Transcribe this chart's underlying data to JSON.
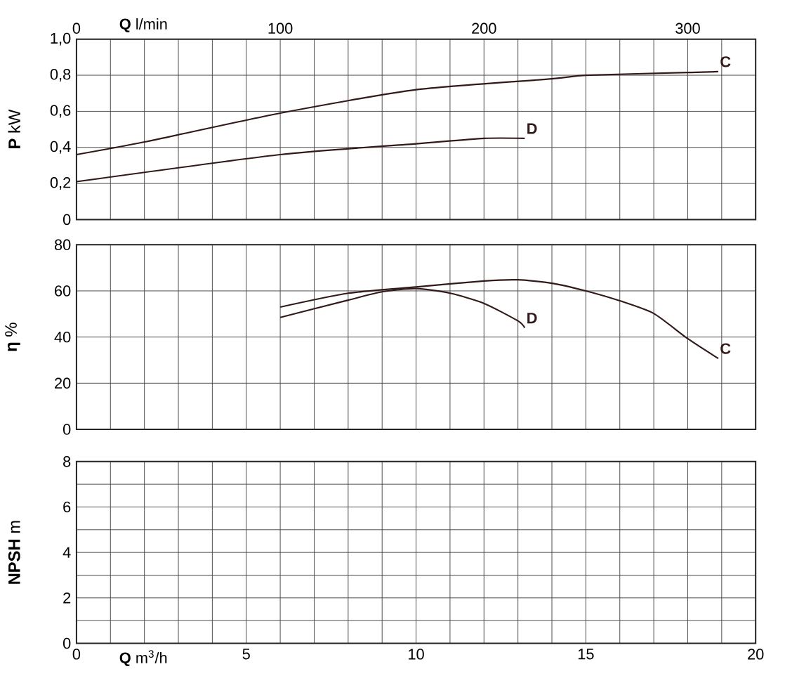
{
  "chart_data": [
    {
      "type": "line",
      "ylabel": "**P** kW",
      "x2label": "**Q** l/min",
      "xlim": [
        0,
        20
      ],
      "xticks": [
        0,
        1,
        2,
        3,
        4,
        5,
        6,
        7,
        8,
        9,
        10,
        11,
        12,
        13,
        14,
        15,
        16,
        17,
        18,
        19,
        20
      ],
      "ylim": [
        0,
        1.0
      ],
      "yticks": [
        0,
        {
          "value": 0.2,
          "label": "0,2"
        },
        {
          "value": 0.4,
          "label": "0,4"
        },
        {
          "value": 0.6,
          "label": "0,6"
        },
        {
          "value": 0.8,
          "label": "0,8"
        },
        {
          "value": 1.0,
          "label": "1,0"
        }
      ],
      "x2lim": [
        0,
        333.33
      ],
      "x2ticks": [
        0,
        100,
        200,
        300
      ],
      "tick_labels": "y",
      "grid": true,
      "series": [
        {
          "name": "C",
          "color": "#331a1a",
          "x": [
            0,
            2,
            6,
            10,
            14,
            15,
            18,
            18.9
          ],
          "values": [
            0.36,
            0.43,
            0.59,
            0.72,
            0.78,
            0.8,
            0.815,
            0.82
          ]
        },
        {
          "name": "D",
          "color": "#331a1a",
          "x": [
            0,
            6,
            10,
            12,
            13.2
          ],
          "values": [
            0.21,
            0.36,
            0.42,
            0.45,
            0.45
          ]
        }
      ]
    },
    {
      "type": "line",
      "ylabel": "**η** %",
      "xlim": [
        0,
        20
      ],
      "xticks": [
        0,
        1,
        2,
        3,
        4,
        5,
        6,
        7,
        8,
        9,
        10,
        11,
        12,
        13,
        14,
        15,
        16,
        17,
        18,
        19,
        20
      ],
      "ylim": [
        0,
        80
      ],
      "yticks": [
        0,
        20,
        40,
        60,
        80
      ],
      "tick_labels": "y",
      "grid": true,
      "series": [
        {
          "name": "C",
          "color": "#331a1a",
          "x": [
            6,
            8,
            10,
            12,
            13,
            14,
            15,
            16,
            17,
            18,
            18.9
          ],
          "values": [
            53,
            59,
            61.7,
            64.3,
            64.8,
            63.3,
            60,
            55.7,
            50.2,
            39.3,
            30.7
          ]
        },
        {
          "name": "D",
          "color": "#331a1a",
          "x": [
            6,
            8,
            9,
            10,
            11,
            12,
            13,
            13.2
          ],
          "values": [
            48.5,
            56,
            59.6,
            61,
            59,
            54.6,
            47,
            44
          ]
        }
      ]
    },
    {
      "type": "line",
      "ylabel": "**NPSH** m",
      "xlabel": "**Q** m$^{3}$/h",
      "xlim": [
        0,
        20
      ],
      "xticks": [
        0,
        {
          "value": 1,
          "label": null
        },
        {
          "value": 2,
          "label": null
        },
        {
          "value": 3,
          "label": null
        },
        {
          "value": 4,
          "label": null
        },
        5,
        {
          "value": 6,
          "label": null
        },
        {
          "value": 7,
          "label": null
        },
        {
          "value": 8,
          "label": null
        },
        {
          "value": 9,
          "label": null
        },
        10,
        {
          "value": 11,
          "label": null
        },
        {
          "value": 12,
          "label": null
        },
        {
          "value": 13,
          "label": null
        },
        {
          "value": 14,
          "label": null
        },
        15,
        {
          "value": 16,
          "label": null
        },
        {
          "value": 17,
          "label": null
        },
        {
          "value": 18,
          "label": null
        },
        {
          "value": 19,
          "label": null
        },
        20
      ],
      "ylim": [
        0,
        8
      ],
      "yticks": [
        0,
        {
          "value": 1,
          "label": null
        },
        2,
        {
          "value": 3,
          "label": null
        },
        4,
        {
          "value": 5,
          "label": null
        },
        6,
        {
          "value": 7,
          "label": null
        },
        8
      ],
      "grid": true
    }
  ]
}
